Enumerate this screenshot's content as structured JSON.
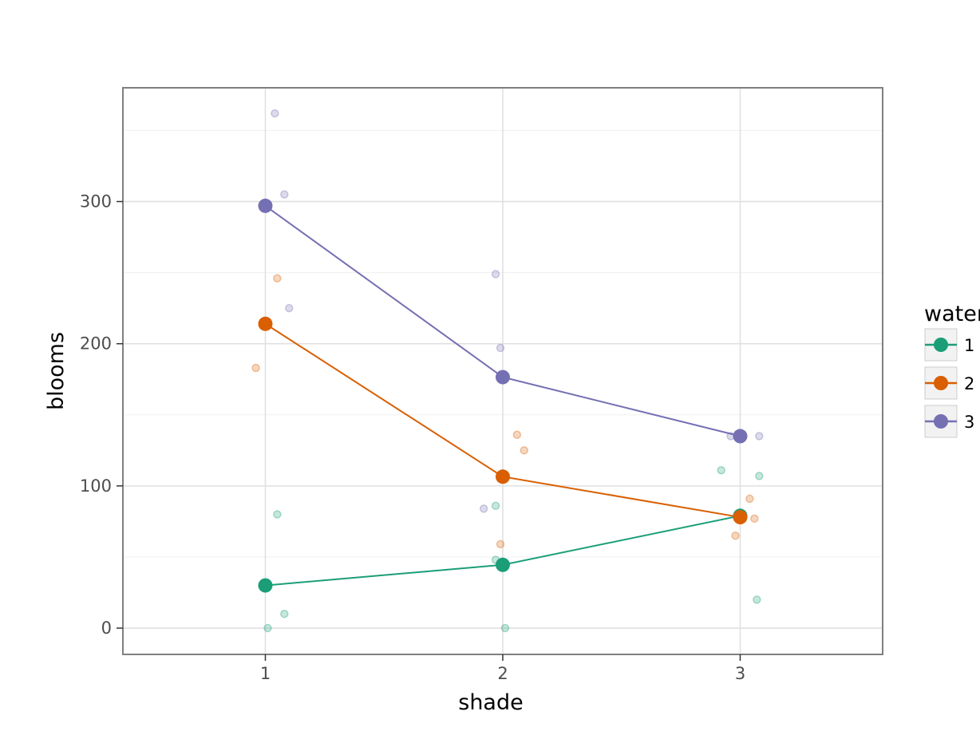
{
  "chart_data": {
    "type": "line",
    "xlabel": "shade",
    "ylabel": "blooms",
    "x": [
      1,
      2,
      3
    ],
    "xlim": [
      0.4,
      3.6
    ],
    "ylim": [
      -18.5,
      380
    ],
    "xticks": [
      1,
      2,
      3
    ],
    "xtick_labels": [
      "1",
      "2",
      "3"
    ],
    "yticks": [
      0,
      100,
      200,
      300
    ],
    "ytick_labels": [
      "0",
      "100",
      "200",
      "300"
    ],
    "grid": true,
    "legend": {
      "title": "water",
      "placement": "right",
      "entries": [
        "1",
        "2",
        "3"
      ]
    },
    "series": [
      {
        "name": "1",
        "color": "#1b9e77",
        "means": [
          30,
          44.5,
          79
        ],
        "observations": [
          {
            "x": 1.01,
            "y": 0
          },
          {
            "x": 1.05,
            "y": 80
          },
          {
            "x": 1.08,
            "y": 10
          },
          {
            "x": 1.97,
            "y": 86
          },
          {
            "x": 1.97,
            "y": 48
          },
          {
            "x": 2.01,
            "y": 0
          },
          {
            "x": 2.92,
            "y": 111
          },
          {
            "x": 3.08,
            "y": 107
          },
          {
            "x": 3.07,
            "y": 20
          }
        ]
      },
      {
        "name": "2",
        "color": "#d95f02",
        "means": [
          214,
          106.5,
          78
        ],
        "observations": [
          {
            "x": 0.96,
            "y": 183
          },
          {
            "x": 1.05,
            "y": 246
          },
          {
            "x": 2.06,
            "y": 136
          },
          {
            "x": 2.09,
            "y": 125
          },
          {
            "x": 1.99,
            "y": 59
          },
          {
            "x": 3.04,
            "y": 91
          },
          {
            "x": 3.06,
            "y": 77
          },
          {
            "x": 2.98,
            "y": 65
          }
        ]
      },
      {
        "name": "3",
        "color": "#7570b3",
        "means": [
          297,
          176.5,
          135
        ],
        "observations": [
          {
            "x": 1.04,
            "y": 362
          },
          {
            "x": 1.08,
            "y": 305
          },
          {
            "x": 1.1,
            "y": 225
          },
          {
            "x": 1.97,
            "y": 249
          },
          {
            "x": 1.99,
            "y": 197
          },
          {
            "x": 1.92,
            "y": 84
          },
          {
            "x": 2.96,
            "y": 135
          },
          {
            "x": 3.08,
            "y": 135
          }
        ]
      }
    ]
  }
}
